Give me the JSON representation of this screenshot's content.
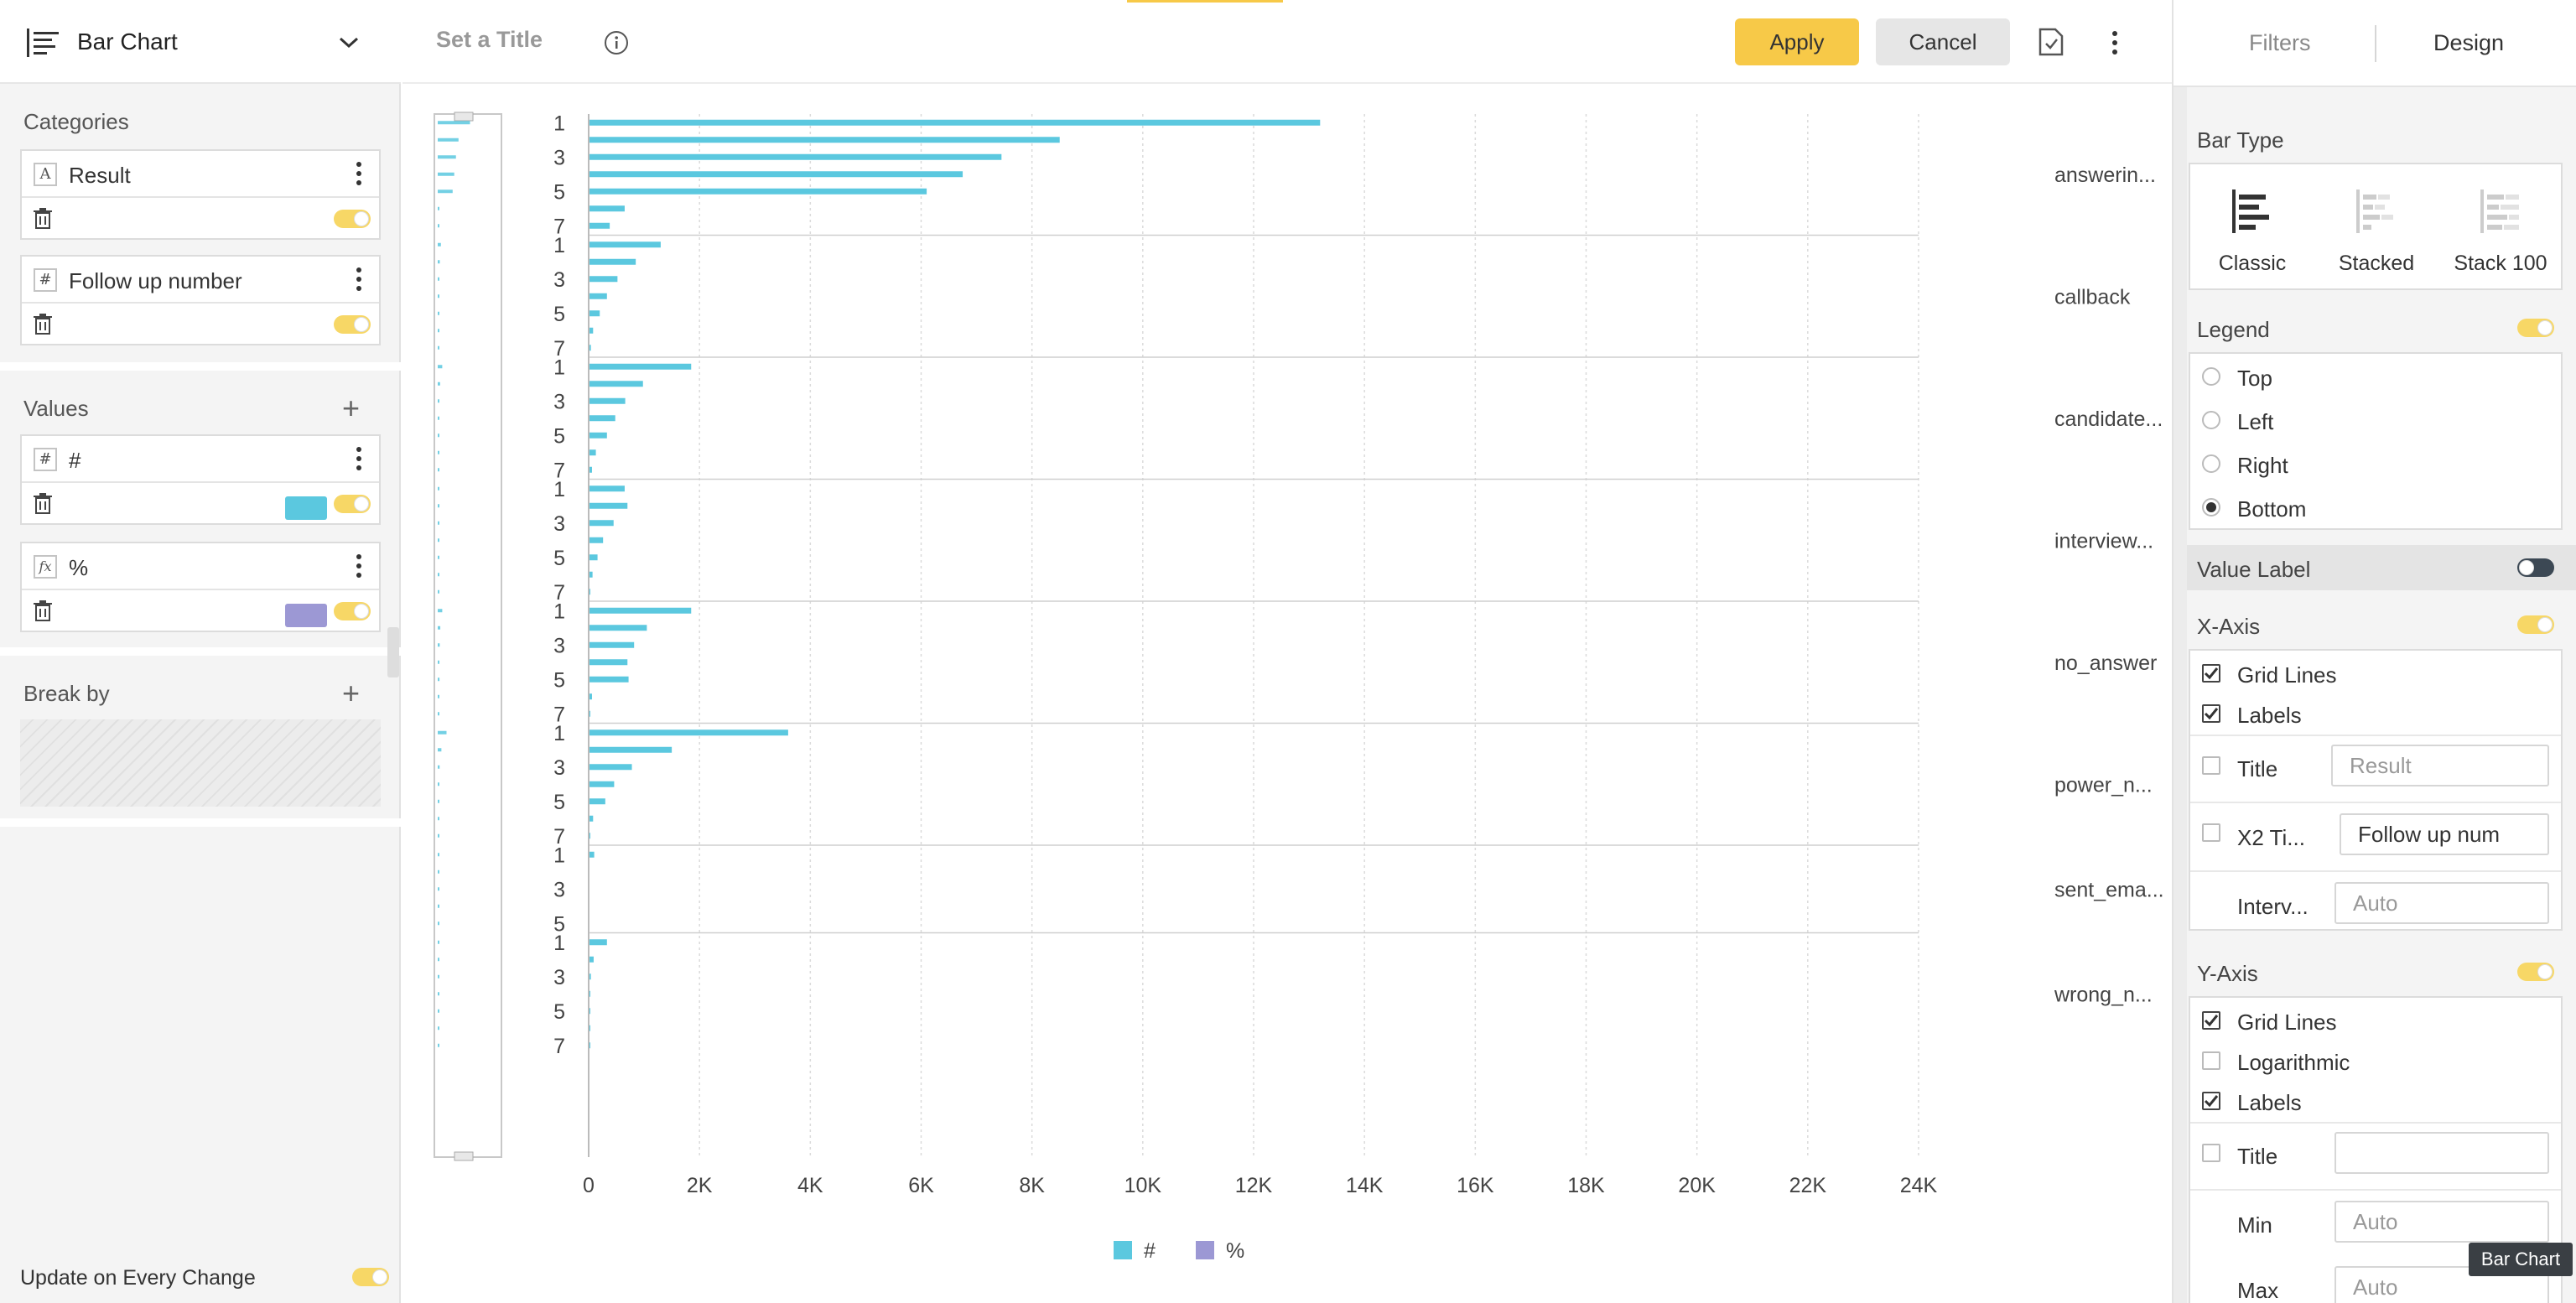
{
  "chart_type_selector": {
    "label": "Bar Chart"
  },
  "left_panel": {
    "categories_title": "Categories",
    "categories": [
      {
        "type": "A",
        "label": "Result"
      },
      {
        "type": "#",
        "label": "Follow up number"
      }
    ],
    "values_title": "Values",
    "values": [
      {
        "type": "#",
        "label": "#",
        "color": "#5bc8df"
      },
      {
        "type": "fx",
        "label": "%",
        "color": "#9c98d4"
      }
    ],
    "break_by_title": "Break by",
    "update_label": "Update on Every Change"
  },
  "top_bar": {
    "title_placeholder": "Set a Title",
    "apply_label": "Apply",
    "cancel_label": "Cancel"
  },
  "colors": {
    "accent": "#f7c948",
    "series_count": "#5bc8df",
    "series_pct": "#9c98d4"
  },
  "chart_data": {
    "type": "bar",
    "orientation": "horizontal",
    "groups": [
      {
        "name": "answerin...",
        "categories": [
          1,
          2,
          3,
          4,
          5,
          6,
          7
        ],
        "values": [
          13200,
          8500,
          7450,
          6750,
          6100,
          650,
          380
        ]
      },
      {
        "name": "callback",
        "categories": [
          1,
          2,
          3,
          4,
          5,
          6,
          7
        ],
        "values": [
          1300,
          850,
          520,
          330,
          200,
          80,
          40
        ]
      },
      {
        "name": "candidate...",
        "categories": [
          1,
          2,
          3,
          4,
          5,
          6,
          7
        ],
        "values": [
          1850,
          980,
          660,
          480,
          330,
          130,
          60
        ]
      },
      {
        "name": "interview...",
        "categories": [
          1,
          2,
          3,
          4,
          5,
          6,
          7
        ],
        "values": [
          650,
          700,
          450,
          260,
          160,
          70,
          30
        ]
      },
      {
        "name": "no_answer",
        "categories": [
          1,
          2,
          3,
          4,
          5,
          6,
          7
        ],
        "values": [
          1850,
          1050,
          820,
          700,
          720,
          60,
          30
        ]
      },
      {
        "name": "power_n...",
        "categories": [
          1,
          2,
          3,
          4,
          5,
          6,
          7
        ],
        "values": [
          3600,
          1500,
          780,
          460,
          300,
          80,
          30
        ]
      },
      {
        "name": "sent_ema...",
        "categories": [
          1,
          2,
          3,
          4,
          5
        ],
        "values": [
          100,
          0,
          0,
          0,
          0
        ]
      },
      {
        "name": "wrong_n...",
        "categories": [
          1,
          2,
          3,
          4,
          5,
          6,
          7
        ],
        "values": [
          330,
          90,
          40,
          20,
          10,
          5,
          2
        ]
      }
    ],
    "shown_tick_labels": [
      "1",
      "3",
      "5",
      "7"
    ],
    "x_ticks": [
      "0",
      "2K",
      "4K",
      "6K",
      "8K",
      "10K",
      "12K",
      "14K",
      "16K",
      "18K",
      "20K",
      "22K",
      "24K"
    ],
    "xlim": [
      0,
      24000
    ],
    "legend": [
      {
        "name": "#",
        "color": "#5bc8df"
      },
      {
        "name": "%",
        "color": "#9c98d4"
      }
    ],
    "legend_position": "bottom",
    "grid": true
  },
  "right_panel": {
    "tab_filters": "Filters",
    "tab_design": "Design",
    "bar_type_title": "Bar Type",
    "bar_types": [
      "Classic",
      "Stacked",
      "Stack 100"
    ],
    "legend_title": "Legend",
    "legend_options": [
      "Top",
      "Left",
      "Right",
      "Bottom"
    ],
    "value_label_title": "Value Label",
    "x_axis_title": "X-Axis",
    "x_axis_options": {
      "grid": "Grid Lines",
      "labels": "Labels",
      "title": "Title",
      "x2": "X2 Ti...",
      "interval": "Interv..."
    },
    "x_axis_values": {
      "title": "Result",
      "x2": "Follow up num",
      "interval": "Auto"
    },
    "y_axis_title": "Y-Axis",
    "y_axis_options": {
      "grid": "Grid Lines",
      "log": "Logarithmic",
      "labels": "Labels",
      "title": "Title",
      "min": "Min",
      "max": "Max"
    },
    "y_axis_values": {
      "min": "Auto",
      "max": "Auto"
    }
  },
  "tooltip": "Bar Chart"
}
